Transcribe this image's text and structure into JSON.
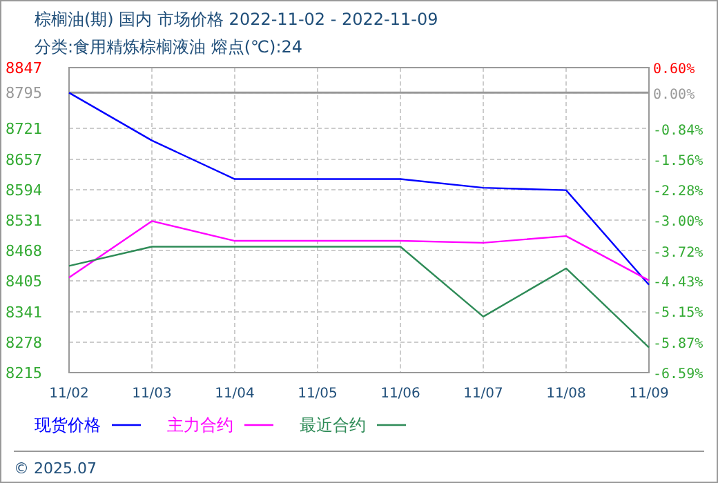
{
  "chart_data": {
    "type": "line",
    "title": "棕榈油(期) 国内 市场价格 2022-11-02 - 2022-11-09",
    "subtitle": "分类:食用精炼棕榈液油 熔点(℃):24",
    "categories": [
      "11/02",
      "11/03",
      "11/04",
      "11/05",
      "11/06",
      "11/07",
      "11/08",
      "11/09"
    ],
    "series": [
      {
        "name": "现货价格",
        "color": "#0000ff",
        "values": [
          8795,
          8696,
          8616,
          8616,
          8616,
          8598,
          8593,
          8397
        ]
      },
      {
        "name": "主力合约",
        "color": "#ff00ff",
        "values": [
          8412,
          8529,
          8488,
          8488,
          8488,
          8484,
          8498,
          8406
        ]
      },
      {
        "name": "最近合约",
        "color": "#2e8b57",
        "values": [
          8436,
          8476,
          8476,
          8476,
          8476,
          8331,
          8431,
          8267
        ]
      }
    ],
    "ylim": [
      8215,
      8847
    ],
    "yticks": [
      8215,
      8278,
      8341,
      8405,
      8468,
      8531,
      8594,
      8657,
      8721,
      8795,
      8847
    ],
    "y2lim": [
      -6.59,
      0.6
    ],
    "y2ticks": [
      {
        "value": -6.59,
        "label": "-6.59%"
      },
      {
        "value": -5.87,
        "label": "-5.87%"
      },
      {
        "value": -5.15,
        "label": "-5.15%"
      },
      {
        "value": -4.43,
        "label": "-4.43%"
      },
      {
        "value": -3.72,
        "label": "-3.72%"
      },
      {
        "value": -3.0,
        "label": "-3.00%"
      },
      {
        "value": -2.28,
        "label": "-2.28%"
      },
      {
        "value": -1.56,
        "label": "-1.56%"
      },
      {
        "value": -0.84,
        "label": "-0.84%"
      },
      {
        "value": 0,
        "label": "0.00%"
      },
      {
        "value": 0.6,
        "label": "0.60%"
      }
    ],
    "ref_lines": [
      {
        "axis": "y",
        "value": 8795,
        "color": "#999999"
      }
    ],
    "grid": true,
    "legend": "bottom",
    "line_style": "solid",
    "marker": "none",
    "annotations": [
      "© 2025.07"
    ]
  }
}
